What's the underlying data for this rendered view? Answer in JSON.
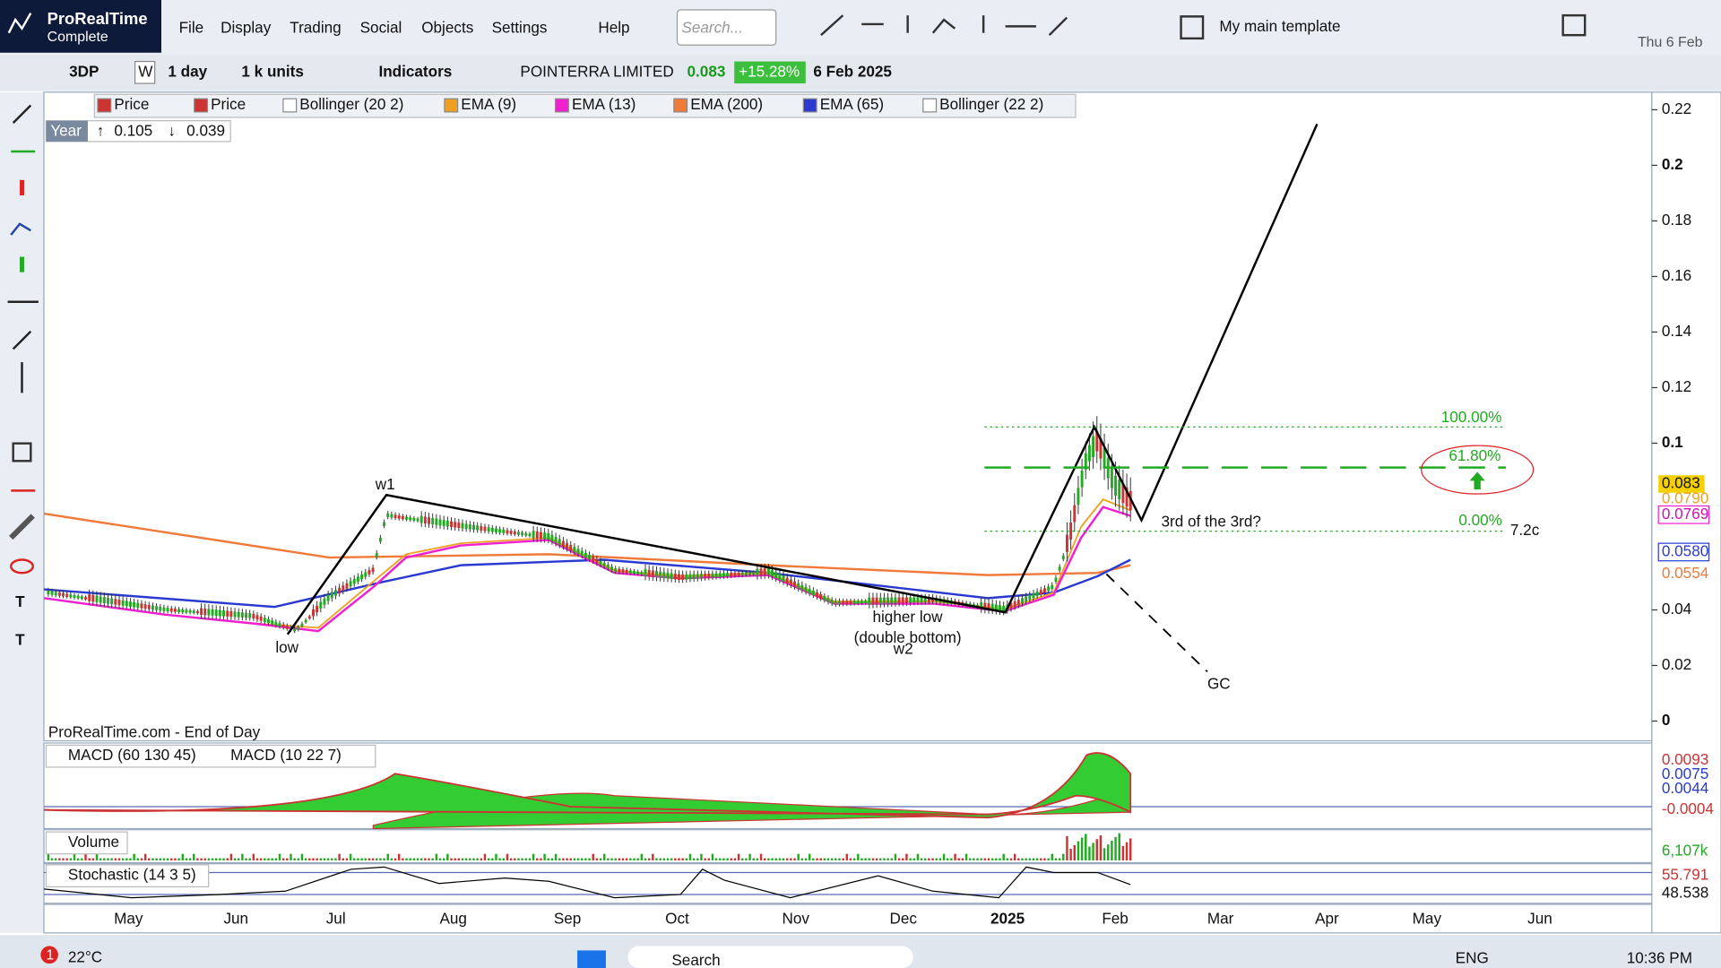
{
  "app": {
    "name": "ProRealTime",
    "edition": "Complete"
  },
  "menu": [
    "File",
    "Display",
    "Trading",
    "Social",
    "Objects",
    "Settings",
    "Help"
  ],
  "search_placeholder": "Search...",
  "template": "My main template",
  "date_top": "Thu 6 Feb",
  "toolbar": {
    "ticker": "3DP",
    "period": "W",
    "timeframe": "1 day",
    "units": "1 k units",
    "indicators": "Indicators",
    "instrument": "POINTERRA LIMITED",
    "price": "0.083",
    "change": "+15.28%",
    "date": "6 Feb 2025"
  },
  "legend": [
    "Price",
    "Price",
    "Bollinger (20 2)",
    "EMA (9)",
    "EMA (13)",
    "EMA (200)",
    "EMA (65)",
    "Bollinger (22 2)"
  ],
  "period_box": {
    "label": "Year",
    "high": "0.105",
    "low": "0.039"
  },
  "price_axis": {
    "ylim": [
      0,
      0.22
    ],
    "ticks": [
      0.22,
      0.2,
      0.18,
      0.16,
      0.14,
      0.12,
      0.1,
      0.04,
      0.02,
      0
    ]
  },
  "price_labels": [
    "0.083",
    "0.0790",
    "0.0769",
    "0.0580",
    "0.0554"
  ],
  "annotations": {
    "w1": "w1",
    "low": "low",
    "higher_low": "higher low",
    "double_bottom": "(double bottom)",
    "w2": "w2",
    "third": "3rd of the 3rd?",
    "gc": "GC",
    "fib100": "100.00%",
    "fib618": "61.80%",
    "fib0": "0.00%",
    "cents": "7.2c"
  },
  "watermark": "ProRealTime.com - End of Day",
  "macd": {
    "labels": [
      "MACD (60 130 45)",
      "MACD (10 22 7)"
    ],
    "values": [
      "0.0093",
      "0.0075",
      "0.0044",
      "-0.0004"
    ]
  },
  "volume": {
    "label": "Volume",
    "value": "6,107k"
  },
  "stochastic": {
    "label": "Stochastic (14 3 5)",
    "values": [
      "55.791",
      "48.538"
    ]
  },
  "x_axis": [
    "May",
    "Jun",
    "Jul",
    "Aug",
    "Sep",
    "Oct",
    "Nov",
    "Dec",
    "2025",
    "Feb",
    "Mar",
    "Apr",
    "May",
    "Jun"
  ],
  "taskbar": {
    "badge": "1",
    "weather": "22°C",
    "search": "Search",
    "language": "ENG",
    "time": "10:36 PM"
  }
}
